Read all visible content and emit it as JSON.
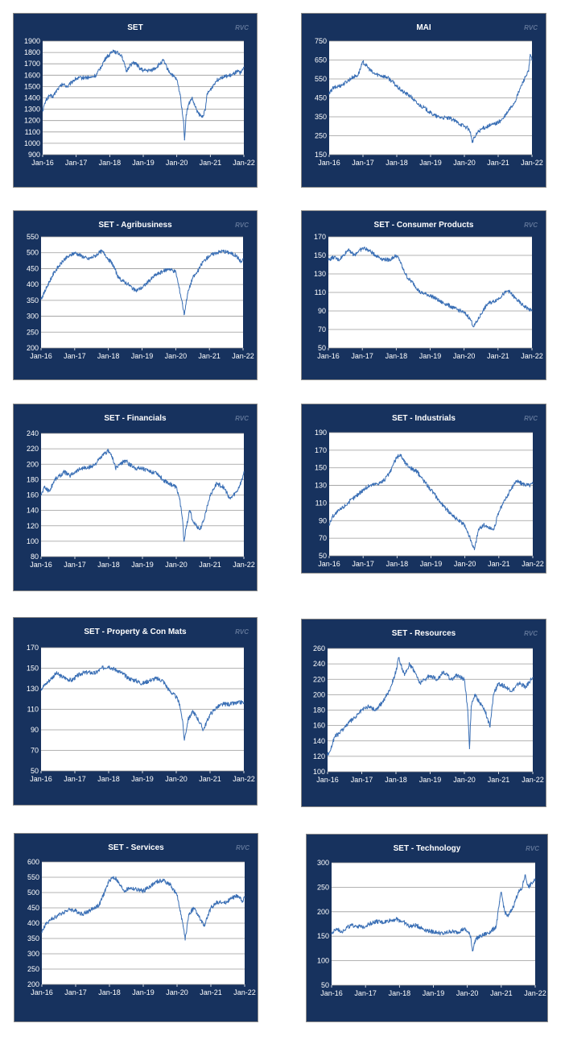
{
  "watermark": "RVC",
  "colors": {
    "panel_bg": "#17325e",
    "plot_bg": "#ffffff",
    "line": "#3a6fb5",
    "grid": "#9a9a9a"
  },
  "x_ticks": [
    "Jan-16",
    "Jan-17",
    "Jan-18",
    "Jan-19",
    "Jan-20",
    "Jan-21",
    "Jan-22"
  ],
  "chart_data": [
    {
      "type": "line",
      "title": "SET",
      "ylim": [
        900,
        1900
      ],
      "yticks": [
        900,
        1000,
        1100,
        1200,
        1300,
        1400,
        1500,
        1600,
        1700,
        1800,
        1900
      ],
      "grid": true,
      "legend": "none",
      "x": [
        2016.0,
        2016.1,
        2016.2,
        2016.3,
        2016.45,
        2016.6,
        2016.75,
        2016.9,
        2017.0,
        2017.25,
        2017.45,
        2017.6,
        2017.75,
        2017.9,
        2018.0,
        2018.1,
        2018.2,
        2018.35,
        2018.5,
        2018.6,
        2018.75,
        2018.9,
        2019.0,
        2019.2,
        2019.35,
        2019.5,
        2019.6,
        2019.75,
        2019.9,
        2020.0,
        2020.1,
        2020.2,
        2020.23,
        2020.28,
        2020.35,
        2020.45,
        2020.55,
        2020.65,
        2020.75,
        2020.85,
        2020.9,
        2021.0,
        2021.15,
        2021.3,
        2021.5,
        2021.65,
        2021.8,
        2021.92,
        2022.0
      ],
      "values": [
        1290,
        1380,
        1420,
        1410,
        1480,
        1520,
        1500,
        1550,
        1570,
        1580,
        1580,
        1600,
        1680,
        1760,
        1780,
        1820,
        1800,
        1780,
        1630,
        1690,
        1710,
        1660,
        1640,
        1640,
        1660,
        1700,
        1730,
        1640,
        1590,
        1560,
        1430,
        1200,
        1030,
        1250,
        1340,
        1400,
        1320,
        1260,
        1230,
        1290,
        1430,
        1470,
        1540,
        1580,
        1590,
        1600,
        1630,
        1620,
        1670
      ]
    },
    {
      "type": "line",
      "title": "MAI",
      "ylim": [
        150,
        750
      ],
      "yticks": [
        150,
        250,
        350,
        450,
        550,
        650,
        750
      ],
      "grid": true,
      "legend": "none",
      "x": [
        2016.0,
        2016.1,
        2016.25,
        2016.4,
        2016.55,
        2016.7,
        2016.85,
        2017.0,
        2017.1,
        2017.3,
        2017.5,
        2017.7,
        2017.85,
        2018.0,
        2018.2,
        2018.4,
        2018.6,
        2018.8,
        2019.0,
        2019.2,
        2019.4,
        2019.6,
        2019.8,
        2020.0,
        2020.1,
        2020.18,
        2020.23,
        2020.3,
        2020.4,
        2020.55,
        2020.7,
        2020.85,
        2021.0,
        2021.15,
        2021.3,
        2021.5,
        2021.65,
        2021.8,
        2021.9,
        2021.95,
        2022.0
      ],
      "values": [
        470,
        500,
        510,
        520,
        540,
        560,
        570,
        640,
        620,
        580,
        570,
        560,
        540,
        510,
        480,
        460,
        420,
        400,
        370,
        350,
        345,
        340,
        320,
        300,
        290,
        270,
        215,
        240,
        270,
        290,
        300,
        310,
        320,
        340,
        380,
        430,
        500,
        560,
        590,
        680,
        650
      ]
    },
    {
      "type": "line",
      "title": "SET - Agribusiness",
      "ylim": [
        200,
        550
      ],
      "yticks": [
        200,
        250,
        300,
        350,
        400,
        450,
        500,
        550
      ],
      "grid": true,
      "legend": "none",
      "x": [
        2016.0,
        2016.1,
        2016.25,
        2016.4,
        2016.55,
        2016.7,
        2016.85,
        2017.0,
        2017.2,
        2017.4,
        2017.6,
        2017.8,
        2017.9,
        2018.0,
        2018.15,
        2018.3,
        2018.45,
        2018.6,
        2018.8,
        2019.0,
        2019.2,
        2019.4,
        2019.6,
        2019.8,
        2020.0,
        2020.1,
        2020.2,
        2020.25,
        2020.35,
        2020.5,
        2020.65,
        2020.8,
        2021.0,
        2021.2,
        2021.4,
        2021.6,
        2021.8,
        2021.95,
        2022.0
      ],
      "values": [
        355,
        375,
        410,
        440,
        460,
        480,
        490,
        500,
        490,
        480,
        490,
        505,
        495,
        480,
        460,
        420,
        410,
        400,
        380,
        390,
        410,
        430,
        440,
        450,
        440,
        390,
        340,
        305,
        370,
        420,
        440,
        470,
        490,
        500,
        505,
        500,
        490,
        470,
        480
      ]
    },
    {
      "type": "line",
      "title": "SET - Consumer Products",
      "ylim": [
        50,
        170
      ],
      "yticks": [
        50,
        70,
        90,
        110,
        130,
        150,
        170
      ],
      "grid": true,
      "legend": "none",
      "x": [
        2016.0,
        2016.15,
        2016.3,
        2016.45,
        2016.6,
        2016.75,
        2016.9,
        2017.05,
        2017.2,
        2017.4,
        2017.6,
        2017.8,
        2018.0,
        2018.1,
        2018.2,
        2018.35,
        2018.5,
        2018.7,
        2018.9,
        2019.1,
        2019.3,
        2019.5,
        2019.7,
        2019.9,
        2020.0,
        2020.1,
        2020.2,
        2020.28,
        2020.4,
        2020.55,
        2020.7,
        2020.85,
        2021.0,
        2021.15,
        2021.3,
        2021.5,
        2021.7,
        2021.9,
        2022.0
      ],
      "values": [
        145,
        148,
        145,
        150,
        157,
        150,
        155,
        158,
        155,
        150,
        146,
        145,
        150,
        145,
        135,
        125,
        120,
        110,
        108,
        105,
        100,
        97,
        93,
        90,
        88,
        85,
        80,
        73,
        80,
        90,
        98,
        100,
        103,
        108,
        112,
        104,
        97,
        92,
        90
      ]
    },
    {
      "type": "line",
      "title": "SET - Financials",
      "ylim": [
        80,
        240
      ],
      "yticks": [
        80,
        100,
        120,
        140,
        160,
        180,
        200,
        220,
        240
      ],
      "grid": true,
      "legend": "none",
      "x": [
        2016.0,
        2016.1,
        2016.25,
        2016.4,
        2016.55,
        2016.7,
        2016.85,
        2017.0,
        2017.2,
        2017.4,
        2017.6,
        2017.8,
        2018.0,
        2018.1,
        2018.2,
        2018.35,
        2018.5,
        2018.6,
        2018.8,
        2019.0,
        2019.2,
        2019.4,
        2019.6,
        2019.8,
        2020.0,
        2020.1,
        2020.18,
        2020.23,
        2020.3,
        2020.4,
        2020.5,
        2020.6,
        2020.7,
        2020.8,
        2021.0,
        2021.2,
        2021.4,
        2021.6,
        2021.8,
        2021.95,
        2022.0
      ],
      "values": [
        160,
        170,
        165,
        180,
        185,
        190,
        185,
        190,
        195,
        195,
        200,
        210,
        218,
        210,
        195,
        200,
        205,
        200,
        195,
        195,
        190,
        190,
        180,
        175,
        170,
        155,
        130,
        100,
        120,
        140,
        125,
        120,
        115,
        125,
        160,
        175,
        170,
        155,
        165,
        180,
        190
      ]
    },
    {
      "type": "line",
      "title": "SET - Industrials",
      "ylim": [
        50,
        190
      ],
      "yticks": [
        50,
        70,
        90,
        110,
        130,
        150,
        170,
        190
      ],
      "grid": true,
      "legend": "none",
      "x": [
        2016.0,
        2016.1,
        2016.25,
        2016.4,
        2016.55,
        2016.7,
        2016.85,
        2017.0,
        2017.2,
        2017.4,
        2017.6,
        2017.8,
        2017.9,
        2018.0,
        2018.1,
        2018.25,
        2018.4,
        2018.6,
        2018.8,
        2019.0,
        2019.2,
        2019.4,
        2019.6,
        2019.8,
        2020.0,
        2020.1,
        2020.2,
        2020.28,
        2020.4,
        2020.55,
        2020.7,
        2020.85,
        2021.0,
        2021.2,
        2021.35,
        2021.5,
        2021.7,
        2021.9,
        2022.0
      ],
      "values": [
        85,
        95,
        100,
        105,
        110,
        115,
        120,
        125,
        130,
        132,
        135,
        145,
        155,
        162,
        165,
        155,
        150,
        145,
        135,
        125,
        115,
        105,
        98,
        90,
        85,
        75,
        65,
        57,
        80,
        85,
        82,
        80,
        100,
        115,
        125,
        135,
        132,
        130,
        132
      ]
    },
    {
      "type": "line",
      "title": "SET - Property & Con Mats",
      "ylim": [
        50,
        170
      ],
      "yticks": [
        50,
        70,
        90,
        110,
        130,
        150,
        170
      ],
      "grid": true,
      "legend": "none",
      "x": [
        2016.0,
        2016.15,
        2016.3,
        2016.45,
        2016.6,
        2016.75,
        2016.9,
        2017.05,
        2017.2,
        2017.4,
        2017.6,
        2017.8,
        2018.0,
        2018.1,
        2018.25,
        2018.4,
        2018.6,
        2018.8,
        2019.0,
        2019.2,
        2019.4,
        2019.6,
        2019.8,
        2020.0,
        2020.1,
        2020.18,
        2020.24,
        2020.35,
        2020.5,
        2020.65,
        2020.8,
        2021.0,
        2021.2,
        2021.4,
        2021.6,
        2021.8,
        2021.95,
        2022.0
      ],
      "values": [
        130,
        135,
        140,
        145,
        142,
        140,
        138,
        142,
        145,
        146,
        145,
        150,
        152,
        150,
        148,
        145,
        140,
        138,
        135,
        138,
        140,
        138,
        128,
        122,
        115,
        100,
        80,
        100,
        108,
        100,
        90,
        105,
        112,
        115,
        115,
        116,
        117,
        116
      ]
    },
    {
      "type": "line",
      "title": "SET - Resources",
      "ylim": [
        100,
        260
      ],
      "yticks": [
        100,
        120,
        140,
        160,
        180,
        200,
        220,
        240,
        260
      ],
      "grid": true,
      "legend": "none",
      "x": [
        2016.0,
        2016.1,
        2016.2,
        2016.35,
        2016.5,
        2016.65,
        2016.8,
        2017.0,
        2017.2,
        2017.4,
        2017.6,
        2017.8,
        2018.0,
        2018.08,
        2018.15,
        2018.25,
        2018.4,
        2018.55,
        2018.7,
        2018.85,
        2019.0,
        2019.2,
        2019.4,
        2019.6,
        2019.8,
        2020.0,
        2020.1,
        2020.15,
        2020.2,
        2020.3,
        2020.45,
        2020.6,
        2020.75,
        2020.85,
        2021.0,
        2021.2,
        2021.4,
        2021.6,
        2021.8,
        2021.95,
        2022.0
      ],
      "values": [
        122,
        130,
        145,
        150,
        158,
        165,
        170,
        180,
        185,
        180,
        190,
        205,
        230,
        248,
        238,
        225,
        240,
        230,
        215,
        220,
        225,
        220,
        230,
        220,
        225,
        220,
        180,
        130,
        185,
        200,
        190,
        180,
        158,
        200,
        215,
        210,
        205,
        215,
        210,
        220,
        222
      ]
    },
    {
      "type": "line",
      "title": "SET - Services",
      "ylim": [
        200,
        600
      ],
      "yticks": [
        200,
        250,
        300,
        350,
        400,
        450,
        500,
        550,
        600
      ],
      "grid": true,
      "legend": "none",
      "x": [
        2016.0,
        2016.1,
        2016.25,
        2016.4,
        2016.55,
        2016.7,
        2016.85,
        2017.0,
        2017.2,
        2017.4,
        2017.55,
        2017.7,
        2017.85,
        2018.0,
        2018.1,
        2018.2,
        2018.3,
        2018.45,
        2018.6,
        2018.8,
        2019.0,
        2019.2,
        2019.4,
        2019.6,
        2019.8,
        2020.0,
        2020.1,
        2020.18,
        2020.24,
        2020.35,
        2020.5,
        2020.65,
        2020.8,
        2021.0,
        2021.2,
        2021.4,
        2021.6,
        2021.8,
        2021.95,
        2022.0
      ],
      "values": [
        370,
        395,
        410,
        420,
        430,
        440,
        445,
        440,
        430,
        440,
        450,
        460,
        500,
        540,
        550,
        545,
        525,
        505,
        515,
        510,
        505,
        520,
        535,
        540,
        525,
        490,
        440,
        390,
        345,
        430,
        450,
        420,
        390,
        450,
        470,
        465,
        480,
        490,
        470,
        485
      ]
    },
    {
      "type": "line",
      "title": "SET - Technology",
      "ylim": [
        50,
        300
      ],
      "yticks": [
        50,
        100,
        150,
        200,
        250,
        300
      ],
      "grid": true,
      "legend": "none",
      "x": [
        2016.0,
        2016.15,
        2016.3,
        2016.5,
        2016.7,
        2016.9,
        2017.1,
        2017.3,
        2017.5,
        2017.7,
        2017.9,
        2018.1,
        2018.3,
        2018.5,
        2018.7,
        2018.9,
        2019.1,
        2019.3,
        2019.5,
        2019.7,
        2019.9,
        2020.0,
        2020.1,
        2020.15,
        2020.25,
        2020.4,
        2020.55,
        2020.7,
        2020.85,
        2020.95,
        2021.0,
        2021.1,
        2021.2,
        2021.35,
        2021.5,
        2021.6,
        2021.7,
        2021.8,
        2021.9,
        2022.0
      ],
      "values": [
        155,
        165,
        160,
        170,
        172,
        168,
        175,
        180,
        178,
        182,
        185,
        180,
        170,
        172,
        165,
        160,
        158,
        155,
        160,
        158,
        165,
        160,
        150,
        120,
        145,
        150,
        155,
        160,
        170,
        220,
        240,
        200,
        190,
        210,
        240,
        245,
        275,
        250,
        258,
        265
      ]
    }
  ]
}
